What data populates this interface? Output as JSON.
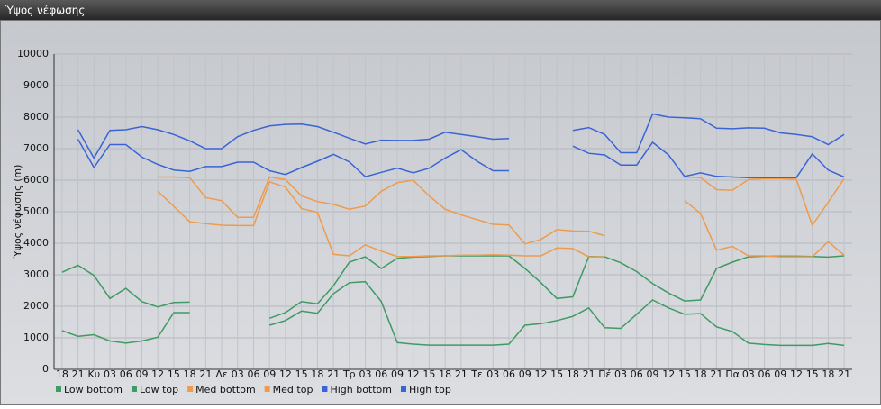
{
  "chart_data": {
    "type": "line",
    "title": "Ύψος νέφωσης",
    "y_label": "Ύψος νέφωσης (m)",
    "categories": [
      "18",
      "21",
      "Κυ",
      "03",
      "06",
      "09",
      "12",
      "15",
      "18",
      "21",
      "Δε",
      "03",
      "06",
      "09",
      "12",
      "15",
      "18",
      "21",
      "Τρ",
      "03",
      "06",
      "09",
      "12",
      "15",
      "18",
      "21",
      "Τε",
      "03",
      "06",
      "09",
      "12",
      "15",
      "18",
      "21",
      "Πέ",
      "03",
      "06",
      "09",
      "12",
      "15",
      "18",
      "21",
      "Πα",
      "03",
      "06",
      "09",
      "12",
      "15",
      "18",
      "21"
    ],
    "series": [
      {
        "name": "Low bottom",
        "color": "#3f9a63",
        "values": [
          1230,
          1050,
          1100,
          900,
          830,
          900,
          1020,
          1800,
          1800,
          null,
          null,
          null,
          null,
          1400,
          1550,
          1850,
          1780,
          2400,
          2750,
          2780,
          2150,
          850,
          800,
          770,
          770,
          770,
          770,
          770,
          800,
          1400,
          1450,
          1550,
          1680,
          1950,
          1320,
          1300,
          1750,
          2200,
          1950,
          1750,
          1770,
          1350,
          1200,
          830,
          790,
          760,
          760,
          760,
          820,
          760
        ]
      },
      {
        "name": "Low top",
        "color": "#3f9a63",
        "values": [
          3080,
          3300,
          2980,
          2250,
          2570,
          2150,
          1980,
          2120,
          2130,
          null,
          null,
          null,
          null,
          1620,
          1800,
          2150,
          2080,
          2650,
          3400,
          3570,
          3200,
          3520,
          3560,
          3580,
          3600,
          3600,
          3600,
          3600,
          3600,
          3200,
          2750,
          2250,
          2300,
          3580,
          3570,
          3380,
          3100,
          2720,
          2420,
          2170,
          2200,
          3200,
          3400,
          3570,
          3590,
          3590,
          3590,
          3580,
          3560,
          3600
        ]
      },
      {
        "name": "Med bottom",
        "color": "#ef9a4c",
        "values": [
          null,
          null,
          null,
          null,
          null,
          null,
          5650,
          5170,
          4680,
          4620,
          4570,
          4560,
          4560,
          5950,
          5780,
          5100,
          4980,
          3650,
          3600,
          3950,
          3750,
          3580,
          3580,
          3600,
          3600,
          3620,
          3620,
          3630,
          3620,
          3600,
          3600,
          3850,
          3830,
          3570,
          3570,
          null,
          null,
          null,
          null,
          5350,
          4950,
          3780,
          3900,
          3600,
          3600,
          3570,
          3570,
          3570,
          4050,
          3620
        ]
      },
      {
        "name": "Med top",
        "color": "#ef9a4c",
        "values": [
          null,
          null,
          null,
          null,
          null,
          null,
          6100,
          6100,
          6080,
          5450,
          5350,
          4820,
          4820,
          6100,
          6020,
          5500,
          5320,
          5230,
          5080,
          5180,
          5650,
          5920,
          6000,
          5500,
          5080,
          4900,
          4750,
          4600,
          4580,
          3980,
          4120,
          4430,
          4390,
          4380,
          4240,
          null,
          null,
          null,
          null,
          6100,
          6080,
          5700,
          5680,
          6020,
          6050,
          6050,
          6030,
          4570,
          5300,
          6050
        ]
      },
      {
        "name": "High bottom",
        "color": "#3a64d6",
        "values": [
          null,
          7300,
          6400,
          7130,
          7130,
          6730,
          6500,
          6320,
          6280,
          6430,
          6430,
          6570,
          6570,
          6300,
          6180,
          6400,
          6600,
          6820,
          6580,
          6110,
          6250,
          6380,
          6230,
          6380,
          6700,
          6970,
          6600,
          6300,
          6300,
          null,
          null,
          null,
          7080,
          6850,
          6800,
          6480,
          6480,
          7200,
          6800,
          6120,
          6230,
          6120,
          6100,
          6080,
          6080,
          6080,
          6080,
          6830,
          6320,
          6100
        ]
      },
      {
        "name": "High top",
        "color": "#3a64d6",
        "values": [
          null,
          7600,
          6700,
          7580,
          7600,
          7700,
          7600,
          7450,
          7250,
          7000,
          7000,
          7380,
          7580,
          7720,
          7770,
          7780,
          7700,
          7520,
          7330,
          7150,
          7270,
          7260,
          7260,
          7300,
          7520,
          7450,
          7380,
          7300,
          7320,
          null,
          null,
          null,
          7580,
          7670,
          7450,
          6870,
          6870,
          8100,
          8000,
          7980,
          7950,
          7650,
          7630,
          7660,
          7650,
          7500,
          7450,
          7380,
          7130,
          7450
        ]
      }
    ],
    "ylim": [
      0,
      10000
    ],
    "yticks": [
      0,
      1000,
      2000,
      3000,
      4000,
      5000,
      6000,
      7000,
      8000,
      9000,
      10000
    ],
    "grid": true
  }
}
